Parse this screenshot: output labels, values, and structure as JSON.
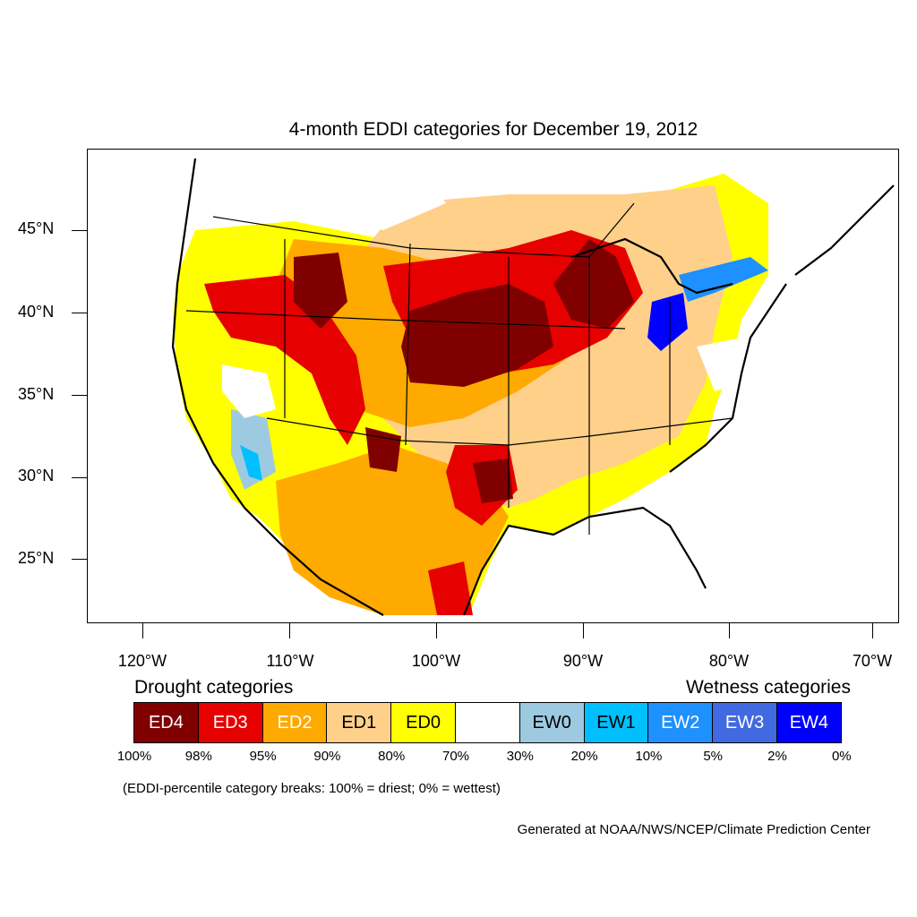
{
  "title": "4-month EDDI categories for December 19, 2012",
  "lat_ticks": [
    "45°N",
    "40°N",
    "35°N",
    "30°N",
    "25°N"
  ],
  "lon_ticks": [
    "120°W",
    "110°W",
    "100°W",
    "90°W",
    "80°W",
    "70°W"
  ],
  "legend": {
    "drought_heading": "Drought categories",
    "wetness_heading": "Wetness categories",
    "categories": [
      {
        "label": "ED4",
        "color": "#800000"
      },
      {
        "label": "ED3",
        "color": "#e60000"
      },
      {
        "label": "ED2",
        "color": "#ffaa00"
      },
      {
        "label": "ED1",
        "color": "#ffd08a"
      },
      {
        "label": "ED0",
        "color": "#ffff00"
      },
      {
        "label": "",
        "color": "#ffffff"
      },
      {
        "label": "EW0",
        "color": "#9ecae1"
      },
      {
        "label": "EW1",
        "color": "#00bfff"
      },
      {
        "label": "EW2",
        "color": "#1e90ff"
      },
      {
        "label": "EW3",
        "color": "#4169e1"
      },
      {
        "label": "EW4",
        "color": "#0000ff"
      }
    ],
    "breaks": [
      "100%",
      "98%",
      "95%",
      "90%",
      "80%",
      "70%",
      "30%",
      "20%",
      "10%",
      "5%",
      "2%",
      "0%"
    ]
  },
  "note": "(EDDI-percentile category breaks: 100% = driest; 0% = wettest)",
  "credit": "Generated at NOAA/NWS/NCEP/Climate Prediction Center"
}
